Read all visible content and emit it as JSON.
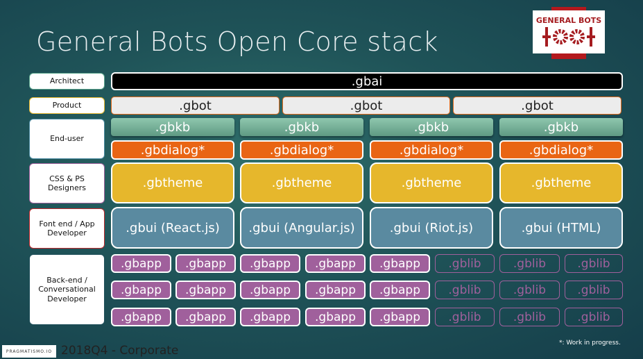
{
  "title": "General Bots Open Core stack",
  "logo": {
    "text": "GENERAL BOTS",
    "color": "#a51c20"
  },
  "footer": {
    "company": "PRAGMATISMO.IO",
    "period": "2018Q4 - Corporate",
    "note": "*: Work in progress."
  },
  "roles": [
    "Architect",
    "Product",
    "End-user",
    "CSS & PS Designers",
    "Font end / App Developer",
    "Back-end / Conversational Developer"
  ],
  "architect": ".gbai",
  "product": [
    ".gbot",
    ".gbot",
    ".gbot"
  ],
  "enduser": {
    "kb": [
      ".gbkb",
      ".gbkb",
      ".gbkb",
      ".gbkb"
    ],
    "dialog": [
      ".gbdialog*",
      ".gbdialog*",
      ".gbdialog*",
      ".gbdialog*"
    ]
  },
  "themes": [
    ".gbtheme",
    ".gbtheme",
    ".gbtheme",
    ".gbtheme"
  ],
  "ui": [
    ".gbui (React.js)",
    ".gbui (Angular.js)",
    ".gbui (Riot.js)",
    ".gbui (HTML)"
  ],
  "backend": [
    [
      ".gbapp",
      ".gbapp",
      ".gbapp",
      ".gbapp",
      ".gbapp",
      ".gblib",
      ".gblib",
      ".gblib"
    ],
    [
      ".gbapp",
      ".gbapp",
      ".gbapp",
      ".gbapp",
      ".gbapp",
      ".gblib",
      ".gblib",
      ".gblib"
    ],
    [
      ".gbapp",
      ".gbapp",
      ".gbapp",
      ".gbapp",
      ".gbapp",
      ".gblib",
      ".gblib",
      ".gblib"
    ]
  ],
  "colors": {
    "gbai": "#000000",
    "gbot": "#ececec",
    "gbkb": "#7fb59d",
    "gbdialog": "#e96514",
    "gbtheme": "#e6b72c",
    "gbui": "#5a8aa0",
    "gbapp": "#a0609c"
  }
}
